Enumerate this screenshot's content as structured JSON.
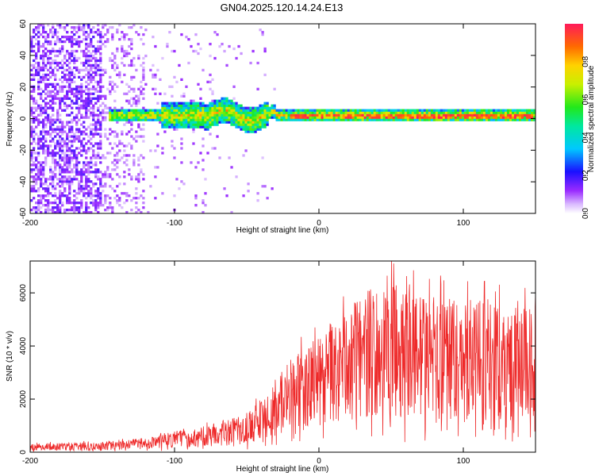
{
  "title": "GN04.2025.120.14.24.E13",
  "colors": {
    "snr_line": "#ee2a2a",
    "frame": "#000000"
  },
  "chart_data": [
    {
      "type": "heatmap",
      "xlabel": "Height of straight line (km)",
      "ylabel": "Frequency (Hz)",
      "xlim": [
        -200,
        150
      ],
      "ylim": [
        -60,
        60
      ],
      "xticks": [
        -200,
        -100,
        0,
        100
      ],
      "yticks": [
        -60,
        -40,
        -20,
        0,
        20,
        40,
        60
      ],
      "colorbar": {
        "label": "Normalized spectral amplitude",
        "range": [
          0,
          1
        ],
        "ticks": [
          0.0,
          0.2,
          0.4,
          0.6,
          0.8
        ],
        "colormap": "rainbow"
      },
      "features": {
        "noise_region_x": [
          -200,
          -120
        ],
        "signal_band_start_x": -145,
        "signal_center_freq_hz": 2,
        "band_halfwidth_hz_near_-80": 8,
        "band_halfwidth_hz_far": 4
      }
    },
    {
      "type": "line",
      "xlabel": "Height of straight line (km)",
      "ylabel": "SNR (10 * v/v)",
      "xlim": [
        -200,
        150
      ],
      "ylim": [
        0,
        7200
      ],
      "xticks": [
        -200,
        -100,
        0,
        100
      ],
      "yticks": [
        0,
        2000,
        4000,
        6000
      ],
      "trend": {
        "x": [
          -200,
          -150,
          -120,
          -100,
          -75,
          -50,
          -35,
          -20,
          0,
          20,
          35,
          50,
          75,
          100,
          130,
          150
        ],
        "y": [
          200,
          230,
          330,
          480,
          620,
          900,
          1400,
          2100,
          2600,
          3300,
          3800,
          3850,
          3600,
          3450,
          3350,
          3300
        ]
      }
    }
  ]
}
